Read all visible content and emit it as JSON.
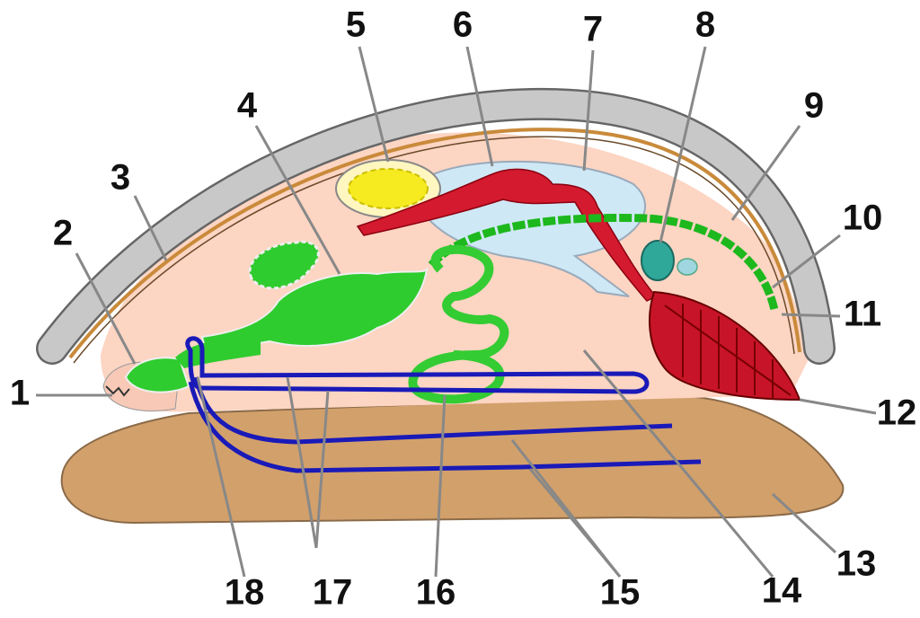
{
  "labels": [
    "1",
    "2",
    "3",
    "4",
    "5",
    "6",
    "7",
    "8",
    "9",
    "10",
    "11",
    "12",
    "13",
    "14",
    "15",
    "16",
    "17",
    "18"
  ]
}
